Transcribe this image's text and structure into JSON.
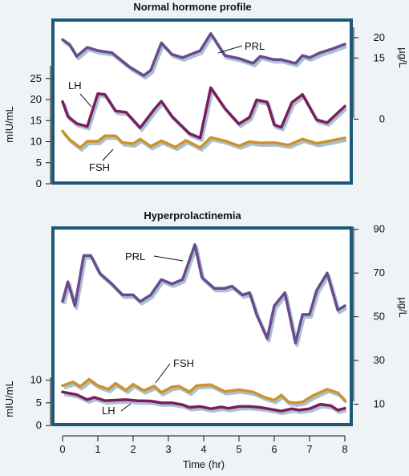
{
  "colors": {
    "background": "#eef3f5",
    "panel_fill": "#ffffff",
    "panel_border": "#1c5878",
    "shadow": "#a9c2d1",
    "PRL": "#6b4a8f",
    "LH": "#7a1f5e",
    "FSH": "#cc922e"
  },
  "chart_data": [
    {
      "type": "line",
      "title": "Normal hormone profile",
      "ylabel_left": "mIU/mL",
      "ylabel_right": "µg/L",
      "xlim": [
        0,
        8
      ],
      "ylim_left": [
        0,
        28
      ],
      "ylim_right": [
        -10.75,
        21.75
      ],
      "yticks_left": [
        "0",
        "5",
        "10",
        "15",
        "20",
        "25"
      ],
      "yticks_right": [
        "0",
        "15",
        "20"
      ],
      "series": [
        {
          "name": "PRL",
          "axis": "right",
          "x": [
            0,
            0.2,
            0.4,
            0.7,
            1.0,
            1.4,
            1.9,
            2.3,
            2.5,
            2.8,
            3.1,
            3.4,
            3.9,
            4.2,
            4.6,
            5.0,
            5.4,
            5.6,
            6.0,
            6.2,
            6.6,
            6.8,
            7.0,
            7.3,
            7.6,
            8.0
          ],
          "values": [
            19.5,
            18.3,
            15.4,
            17.6,
            16.8,
            16.3,
            12.8,
            10.7,
            12.0,
            18.7,
            15.9,
            15.1,
            16.8,
            21.0,
            15.6,
            14.9,
            13.7,
            15.4,
            14.6,
            14.6,
            13.7,
            15.6,
            15.1,
            16.3,
            17.1,
            18.4
          ]
        },
        {
          "name": "LH",
          "axis": "left",
          "x": [
            0,
            0.15,
            0.4,
            0.7,
            1.0,
            1.2,
            1.5,
            1.8,
            2.2,
            2.6,
            2.8,
            3.1,
            3.6,
            3.9,
            4.2,
            4.6,
            5.0,
            5.3,
            5.5,
            5.8,
            6.0,
            6.2,
            6.5,
            6.8,
            7.2,
            7.5,
            8.0
          ],
          "values": [
            19.5,
            16.0,
            14.3,
            13.6,
            21.4,
            21.2,
            17.3,
            17.0,
            13.3,
            17.7,
            19.6,
            16.0,
            11.9,
            10.9,
            22.8,
            17.9,
            14.2,
            15.8,
            19.9,
            19.4,
            14.0,
            13.4,
            19.3,
            21.2,
            15.2,
            14.5,
            18.4
          ]
        },
        {
          "name": "FSH",
          "axis": "left",
          "x": [
            0,
            0.2,
            0.5,
            0.7,
            1.0,
            1.2,
            1.5,
            1.7,
            2.0,
            2.2,
            2.5,
            2.8,
            3.2,
            3.5,
            3.9,
            4.2,
            4.6,
            5.0,
            5.3,
            5.6,
            6.0,
            6.4,
            6.8,
            7.2,
            7.6,
            8.0
          ],
          "values": [
            12.5,
            10.5,
            8.6,
            10.1,
            10.1,
            11.4,
            11.4,
            9.8,
            9.5,
            10.6,
            8.9,
            10.2,
            8.7,
            10.3,
            8.6,
            11.0,
            10.2,
            9.0,
            10.0,
            9.7,
            9.8,
            9.2,
            10.6,
            9.6,
            10.2,
            10.9
          ]
        }
      ]
    },
    {
      "type": "line",
      "title": "Hyperprolactinemia",
      "xlabel": "Time (hr)",
      "ylabel_left": "mIU/mL",
      "ylabel_right": "µg/L",
      "xlim": [
        0,
        8
      ],
      "ylim_left": [
        -0.5,
        46
      ],
      "ylim_right": [
        1,
        91
      ],
      "xticks": [
        "0",
        "1",
        "2",
        "3",
        "4",
        "5",
        "6",
        "7",
        "8"
      ],
      "yticks_left": [
        "0",
        "5",
        "10"
      ],
      "yticks_right": [
        "10",
        "30",
        "50",
        "70",
        "90"
      ],
      "series": [
        {
          "name": "PRL",
          "axis": "right",
          "x": [
            0,
            0.15,
            0.35,
            0.6,
            0.8,
            1.05,
            1.4,
            1.7,
            2.0,
            2.2,
            2.5,
            2.8,
            3.1,
            3.4,
            3.75,
            3.95,
            4.3,
            4.6,
            4.8,
            5.1,
            5.3,
            5.5,
            5.8,
            6.0,
            6.3,
            6.6,
            6.8,
            7.0,
            7.2,
            7.5,
            7.8,
            8.0
          ],
          "values": [
            57,
            66,
            55,
            78,
            78,
            70,
            65,
            60,
            60,
            57,
            60,
            67,
            65,
            67,
            83,
            68,
            63,
            63,
            64,
            60,
            61,
            51,
            40,
            55,
            61,
            38,
            51,
            51,
            62,
            70,
            53,
            55
          ]
        },
        {
          "name": "FSH",
          "axis": "left",
          "x": [
            0,
            0.3,
            0.5,
            0.75,
            1.0,
            1.3,
            1.5,
            1.8,
            2.0,
            2.3,
            2.6,
            2.8,
            3.1,
            3.3,
            3.6,
            3.8,
            4.2,
            4.6,
            5.0,
            5.4,
            5.7,
            6.0,
            6.2,
            6.4,
            6.6,
            6.8,
            7.1,
            7.5,
            7.8,
            8.0
          ],
          "values": [
            8.8,
            9.6,
            8.6,
            10.2,
            8.8,
            8.0,
            9.3,
            7.8,
            9.1,
            7.7,
            8.7,
            7.3,
            8.5,
            8.7,
            7.4,
            8.8,
            9.0,
            7.5,
            7.9,
            7.4,
            6.3,
            5.6,
            6.7,
            5.2,
            5.0,
            5.2,
            6.6,
            8.0,
            7.2,
            5.6
          ]
        },
        {
          "name": "LH",
          "axis": "left",
          "x": [
            0,
            0.4,
            0.7,
            0.9,
            1.2,
            1.5,
            1.8,
            2.1,
            2.5,
            2.8,
            3.1,
            3.4,
            3.6,
            3.9,
            4.2,
            4.5,
            4.7,
            5.0,
            5.3,
            5.6,
            5.9,
            6.2,
            6.5,
            6.7,
            7.0,
            7.3,
            7.6,
            7.8,
            8.0
          ],
          "values": [
            7.4,
            6.8,
            5.7,
            6.2,
            5.5,
            5.6,
            5.7,
            5.5,
            5.4,
            5.0,
            5.0,
            4.6,
            4.0,
            4.2,
            3.7,
            4.1,
            3.8,
            4.2,
            4.2,
            4.0,
            3.6,
            3.2,
            3.7,
            3.4,
            3.7,
            4.7,
            4.4,
            3.4,
            3.8
          ]
        }
      ]
    }
  ],
  "annotations": {
    "top": [
      "PRL",
      "LH",
      "FSH"
    ],
    "bottom": [
      "PRL",
      "FSH",
      "LH"
    ]
  }
}
